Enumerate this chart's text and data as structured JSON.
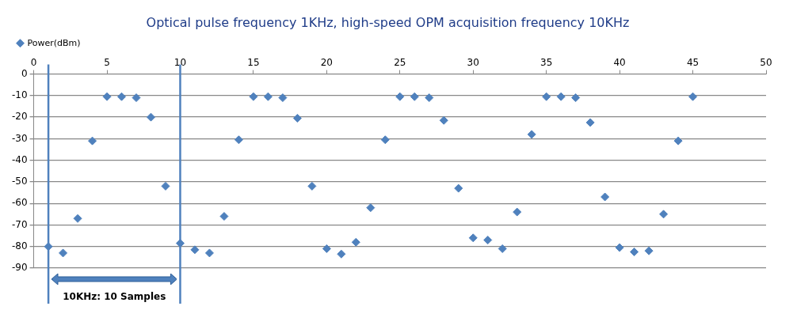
{
  "chart_data": {
    "type": "scatter",
    "title": "Optical pulse frequency 1KHz, high-speed OPM acquisition frequency 10KHz",
    "x": [
      1,
      2,
      3,
      4,
      5,
      6,
      7,
      8,
      9,
      10,
      11,
      12,
      13,
      14,
      15,
      16,
      17,
      18,
      19,
      20,
      21,
      22,
      23,
      24,
      25,
      26,
      27,
      28,
      29,
      30,
      31,
      32,
      33,
      34,
      35,
      36,
      37,
      38,
      39,
      40,
      41,
      42,
      43,
      44,
      45
    ],
    "series": [
      {
        "name": "Power(dBm)",
        "color": "#4f81bd",
        "values": [
          -80,
          -83,
          -67,
          -31,
          -10.5,
          -10.5,
          -11,
          -20,
          -52,
          -78.5,
          -81.5,
          -83,
          -66,
          -30.5,
          -10.5,
          -10.5,
          -11,
          -20.5,
          -52,
          -81,
          -83.5,
          -78,
          -62,
          -30.5,
          -10.5,
          -10.5,
          -11,
          -21.5,
          -53,
          -76,
          -77,
          -81,
          -64,
          -28,
          -10.5,
          -10.5,
          -11,
          -22.5,
          -57,
          -80.5,
          -82.5,
          -82,
          -65,
          -31,
          -10.5
        ]
      }
    ],
    "xlim": [
      0,
      50
    ],
    "xticks": [
      0,
      5,
      10,
      15,
      20,
      25,
      30,
      35,
      40,
      45,
      50
    ],
    "ylim": [
      -90,
      0
    ],
    "yticks": [
      0,
      -10,
      -20,
      -30,
      -40,
      -50,
      -60,
      -70,
      -80,
      -90
    ],
    "ref_lines": [
      {
        "axis": "x",
        "value": 1,
        "color": "#4f81bd"
      },
      {
        "axis": "x",
        "value": 10,
        "color": "#4f81bd"
      }
    ],
    "annotations": [
      "10KHz: 10 Samples"
    ],
    "grid": "y",
    "legend": "top left",
    "marker": "diamond"
  }
}
